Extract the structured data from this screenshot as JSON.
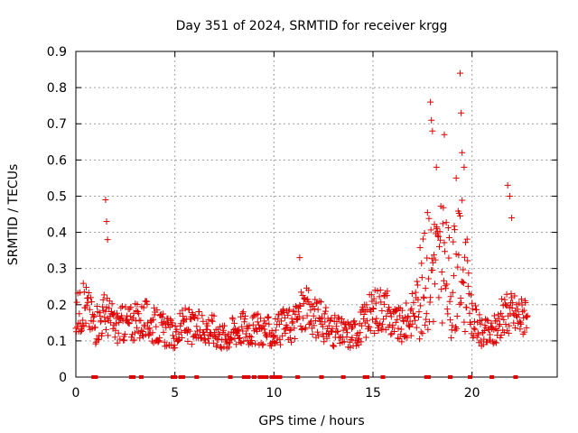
{
  "chart_data": {
    "type": "scatter",
    "title": "Day 351 of 2024, SRMTID for receiver krgg",
    "xlabel": "GPS time / hours",
    "ylabel": "SRMTID / TECUs",
    "xlim": [
      0,
      24.3
    ],
    "ylim": [
      0,
      0.9
    ],
    "x_ticks": [
      0,
      5,
      10,
      15,
      20
    ],
    "x_tick_labels": [
      "0",
      "5",
      "10",
      "15",
      "20"
    ],
    "y_ticks": [
      0,
      0.1,
      0.2,
      0.3,
      0.4,
      0.5,
      0.6,
      0.7,
      0.8,
      0.9
    ],
    "y_tick_labels": [
      "0",
      "0.1",
      "0.2",
      "0.3",
      "0.4",
      "0.5",
      "0.6",
      "0.7",
      "0.8",
      "0.9"
    ],
    "grid": true,
    "marker": "plus",
    "color": "#e00000",
    "trend": [
      {
        "x": 0.0,
        "y": 0.17
      },
      {
        "x": 0.5,
        "y": 0.2
      },
      {
        "x": 1.0,
        "y": 0.14
      },
      {
        "x": 1.5,
        "y": 0.18
      },
      {
        "x": 2.0,
        "y": 0.14
      },
      {
        "x": 2.5,
        "y": 0.15
      },
      {
        "x": 3.0,
        "y": 0.15
      },
      {
        "x": 3.5,
        "y": 0.16
      },
      {
        "x": 4.0,
        "y": 0.14
      },
      {
        "x": 4.5,
        "y": 0.13
      },
      {
        "x": 5.0,
        "y": 0.11
      },
      {
        "x": 5.5,
        "y": 0.15
      },
      {
        "x": 6.0,
        "y": 0.13
      },
      {
        "x": 6.5,
        "y": 0.14
      },
      {
        "x": 7.0,
        "y": 0.13
      },
      {
        "x": 7.5,
        "y": 0.11
      },
      {
        "x": 8.0,
        "y": 0.13
      },
      {
        "x": 8.5,
        "y": 0.14
      },
      {
        "x": 9.0,
        "y": 0.13
      },
      {
        "x": 9.5,
        "y": 0.13
      },
      {
        "x": 10.0,
        "y": 0.12
      },
      {
        "x": 10.5,
        "y": 0.14
      },
      {
        "x": 11.0,
        "y": 0.15
      },
      {
        "x": 11.5,
        "y": 0.19
      },
      {
        "x": 12.0,
        "y": 0.17
      },
      {
        "x": 12.5,
        "y": 0.15
      },
      {
        "x": 13.0,
        "y": 0.13
      },
      {
        "x": 13.5,
        "y": 0.12
      },
      {
        "x": 14.0,
        "y": 0.12
      },
      {
        "x": 14.5,
        "y": 0.15
      },
      {
        "x": 15.0,
        "y": 0.18
      },
      {
        "x": 15.5,
        "y": 0.2
      },
      {
        "x": 16.0,
        "y": 0.15
      },
      {
        "x": 16.5,
        "y": 0.14
      },
      {
        "x": 17.0,
        "y": 0.18
      },
      {
        "x": 17.5,
        "y": 0.24
      },
      {
        "x": 18.0,
        "y": 0.33
      },
      {
        "x": 18.5,
        "y": 0.3
      },
      {
        "x": 19.0,
        "y": 0.25
      },
      {
        "x": 19.5,
        "y": 0.32
      },
      {
        "x": 20.0,
        "y": 0.16
      },
      {
        "x": 20.5,
        "y": 0.12
      },
      {
        "x": 21.0,
        "y": 0.12
      },
      {
        "x": 21.5,
        "y": 0.16
      },
      {
        "x": 22.0,
        "y": 0.18
      },
      {
        "x": 22.5,
        "y": 0.17
      },
      {
        "x": 22.8,
        "y": 0.2
      }
    ],
    "spikes": [
      {
        "x": 1.5,
        "y": 0.49
      },
      {
        "x": 1.55,
        "y": 0.43
      },
      {
        "x": 1.6,
        "y": 0.38
      },
      {
        "x": 11.3,
        "y": 0.33
      },
      {
        "x": 17.9,
        "y": 0.76
      },
      {
        "x": 17.95,
        "y": 0.71
      },
      {
        "x": 18.0,
        "y": 0.68
      },
      {
        "x": 18.2,
        "y": 0.58
      },
      {
        "x": 18.6,
        "y": 0.67
      },
      {
        "x": 19.2,
        "y": 0.55
      },
      {
        "x": 19.4,
        "y": 0.84
      },
      {
        "x": 19.45,
        "y": 0.73
      },
      {
        "x": 19.5,
        "y": 0.62
      },
      {
        "x": 19.6,
        "y": 0.58
      },
      {
        "x": 21.8,
        "y": 0.53
      },
      {
        "x": 21.9,
        "y": 0.5
      },
      {
        "x": 22.0,
        "y": 0.44
      }
    ],
    "zero_points_x": [
      0.9,
      1.0,
      2.8,
      2.9,
      3.3,
      4.9,
      5.0,
      5.3,
      5.4,
      6.1,
      7.8,
      8.5,
      8.7,
      9.0,
      9.3,
      9.5,
      9.6,
      9.9,
      10.1,
      10.3,
      11.2,
      12.4,
      13.5,
      14.6,
      14.7,
      15.5,
      17.7,
      17.8,
      18.9,
      19.9,
      21.0,
      22.2
    ]
  }
}
